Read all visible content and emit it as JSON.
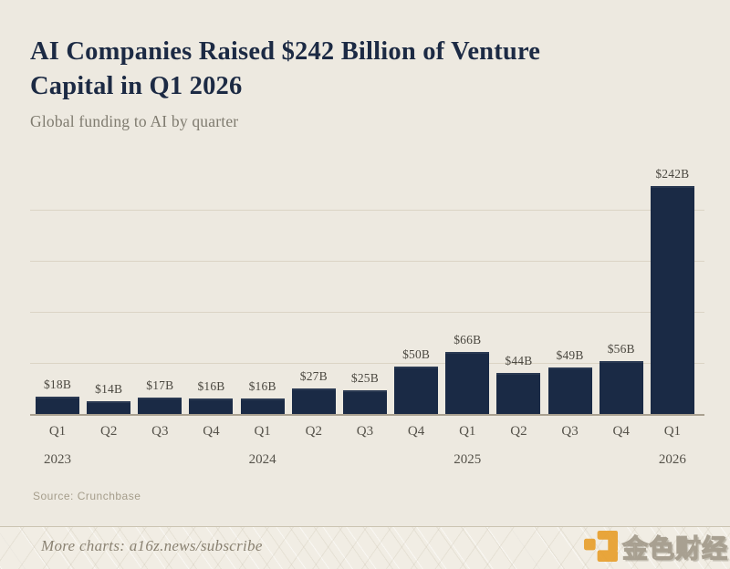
{
  "header": {
    "title_line1": "AI Companies Raised $242 Billion of Venture",
    "title_line2": "Capital in Q1 2026",
    "subtitle": "Global funding to AI by quarter"
  },
  "chart_data": {
    "type": "bar",
    "title": "AI Companies Raised $242 Billion of Venture Capital in Q1 2026",
    "subtitle": "Global funding to AI by quarter",
    "unit": "USD billions",
    "categories": [
      "Q1 2023",
      "Q2 2023",
      "Q3 2023",
      "Q4 2023",
      "Q1 2024",
      "Q2 2024",
      "Q3 2024",
      "Q4 2024",
      "Q1 2025",
      "Q2 2025",
      "Q3 2025",
      "Q4 2025",
      "Q1 2026"
    ],
    "values": [
      18,
      14,
      17,
      16,
      16,
      27,
      25,
      50,
      66,
      44,
      49,
      56,
      242
    ],
    "data_labels": [
      "$18B",
      "$14B",
      "$17B",
      "$16B",
      "$16B",
      "$27B",
      "$25B",
      "$50B",
      "$66B",
      "$44B",
      "$49B",
      "$56B",
      "$242B"
    ],
    "bars": [
      {
        "quarter": "Q1",
        "year": "2023",
        "value": 18,
        "label": "$18B"
      },
      {
        "quarter": "Q2",
        "value": 14,
        "label": "$14B"
      },
      {
        "quarter": "Q3",
        "value": 17,
        "label": "$17B"
      },
      {
        "quarter": "Q4",
        "value": 16,
        "label": "$16B"
      },
      {
        "quarter": "Q1",
        "year": "2024",
        "value": 16,
        "label": "$16B"
      },
      {
        "quarter": "Q2",
        "value": 27,
        "label": "$27B"
      },
      {
        "quarter": "Q3",
        "value": 25,
        "label": "$25B"
      },
      {
        "quarter": "Q4",
        "value": 50,
        "label": "$50B"
      },
      {
        "quarter": "Q1",
        "year": "2025",
        "value": 66,
        "label": "$66B"
      },
      {
        "quarter": "Q2",
        "value": 44,
        "label": "$44B"
      },
      {
        "quarter": "Q3",
        "value": 49,
        "label": "$49B"
      },
      {
        "quarter": "Q4",
        "value": 56,
        "label": "$56B"
      },
      {
        "quarter": "Q1",
        "year": "2026",
        "value": 242,
        "label": "$242B"
      }
    ],
    "xlabel": "",
    "ylabel": "",
    "ylim": [
      0,
      260
    ],
    "grid": "horizontal, 4 unlabeled gridlines",
    "legend": "none"
  },
  "source": {
    "text": "Source: Crunchbase"
  },
  "footer": {
    "text": "More charts: a16z.news/subscribe"
  },
  "watermark": {
    "text": "金色财经",
    "icon": "jinse-finance-logo",
    "color": "#E8A02F"
  },
  "colors": {
    "background": "#EDE9E0",
    "bar": "#1A2A45",
    "title": "#1C2A44",
    "subtitle": "#7F7B6F",
    "gridline": "#DBD4C5",
    "axis": "#A9A090",
    "watermark_orange": "#E8A02F"
  }
}
